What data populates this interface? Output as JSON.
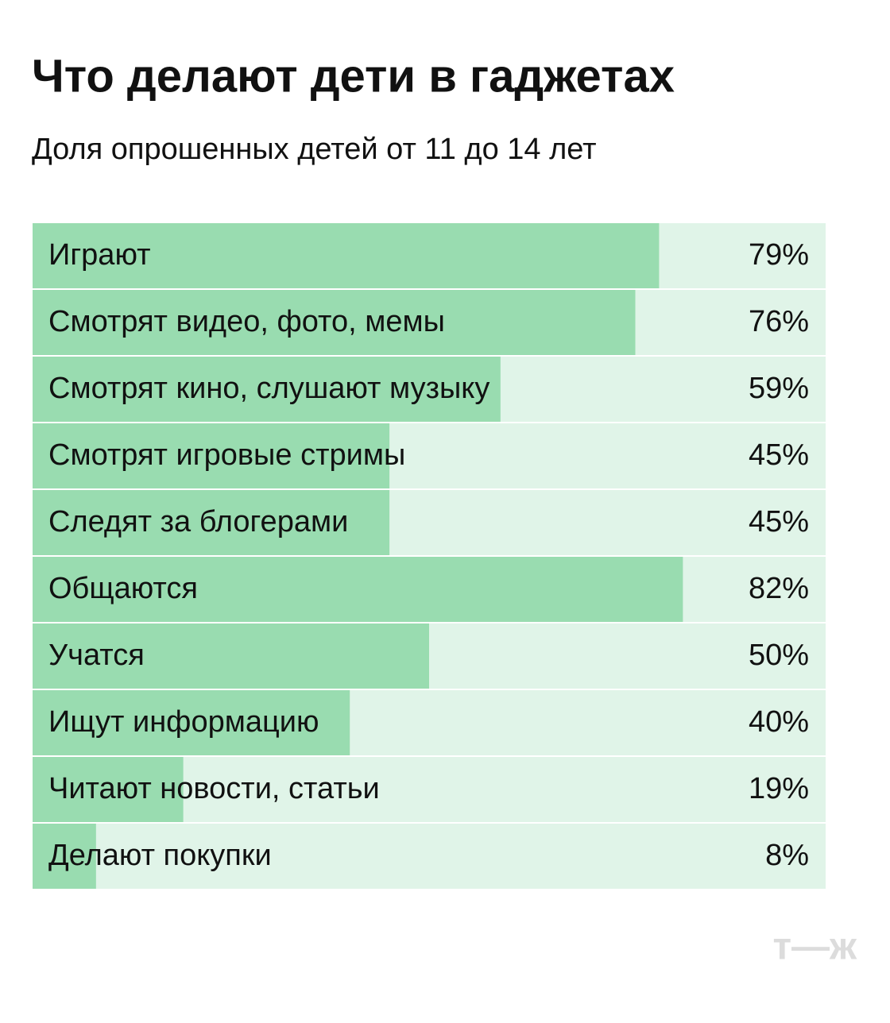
{
  "chart_data": {
    "type": "bar",
    "title": "Что делают дети в гаджетах",
    "subtitle": "Доля опрошенных детей от 11 до 14 лет",
    "categories": [
      "Играют",
      "Смотрят видео, фото, мемы",
      "Смотрят кино, слушают музыку",
      "Смотрят игровые стримы",
      "Следят за блогерами",
      "Общаются",
      "Учатся",
      "Ищут информацию",
      "Читают новости, статьи",
      "Делают покупки"
    ],
    "values": [
      79,
      76,
      59,
      45,
      45,
      82,
      50,
      40,
      19,
      8
    ],
    "value_labels": [
      "79%",
      "76%",
      "59%",
      "45%",
      "45%",
      "82%",
      "50%",
      "40%",
      "19%",
      "8%"
    ],
    "xlim": [
      0,
      100
    ],
    "color": "#99dcb0",
    "track_color": "#e0f4e8",
    "logo": "т—ж"
  }
}
